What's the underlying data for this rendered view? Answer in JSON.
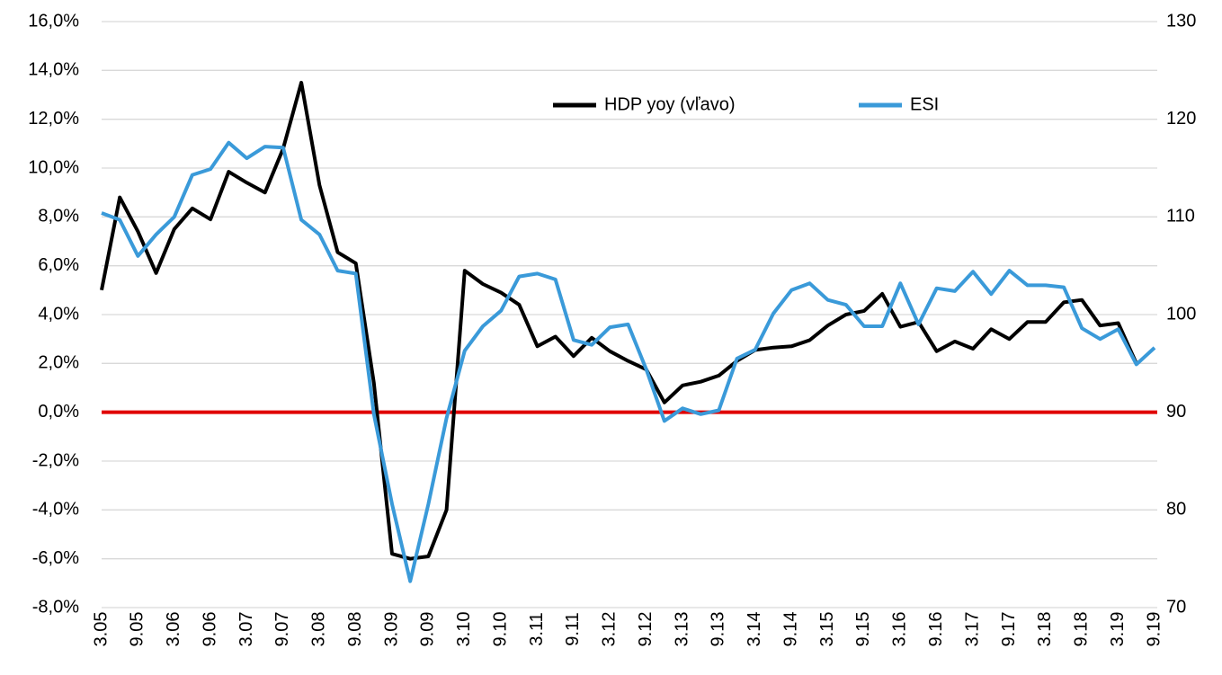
{
  "chart_data": {
    "type": "line",
    "categories": [
      "3.05",
      null,
      "9.05",
      null,
      "3.06",
      null,
      "9.06",
      null,
      "3.07",
      null,
      "9.07",
      null,
      "3.08",
      null,
      "9.08",
      null,
      "3.09",
      null,
      "9.09",
      null,
      "3.10",
      null,
      "9.10",
      null,
      "3.11",
      null,
      "9.11",
      null,
      "3.12",
      null,
      "9.12",
      null,
      "3.13",
      null,
      "9.13",
      null,
      "3.14",
      null,
      "9.14",
      null,
      "3.15",
      null,
      "9.15",
      null,
      "3.16",
      null,
      "9.16",
      null,
      "3.17",
      null,
      "9.17",
      null,
      "3.18",
      null,
      "9.18",
      null,
      "3.19",
      null,
      "9.19"
    ],
    "series": [
      {
        "name": "HDP yoy (vľavo)",
        "color": "#000000",
        "values": [
          5.0,
          8.8,
          7.4,
          5.7,
          7.5,
          8.35,
          7.9,
          9.85,
          9.4,
          9.0,
          10.8,
          13.5,
          9.3,
          6.55,
          6.1,
          1.2,
          -5.8,
          -6.0,
          -5.9,
          -4.0,
          5.8,
          5.25,
          4.9,
          4.4,
          2.7,
          3.1,
          2.3,
          3.05,
          2.5,
          2.1,
          1.75,
          0.4,
          1.1,
          1.25,
          1.5,
          2.1,
          2.55,
          2.65,
          2.7,
          2.95,
          3.55,
          4.0,
          4.15,
          4.85,
          3.5,
          3.7,
          2.5,
          2.9,
          2.6,
          3.4,
          3.0,
          3.7,
          3.7,
          4.5,
          4.6,
          3.55,
          3.65,
          2.0,
          null
        ]
      },
      {
        "name": "ESI",
        "color": "#3a9ad9",
        "axis": "y2",
        "values": [
          110.4,
          109.7,
          106.0,
          108.2,
          110.0,
          114.3,
          114.9,
          117.6,
          116.0,
          117.2,
          117.1,
          109.7,
          108.2,
          104.5,
          104.2,
          89.8,
          80.6,
          72.7,
          80.6,
          89.4,
          96.3,
          98.8,
          100.4,
          103.9,
          104.2,
          103.6,
          97.4,
          96.9,
          98.7,
          99.0,
          94.4,
          89.1,
          90.4,
          89.8,
          90.2,
          95.5,
          96.4,
          100.1,
          102.5,
          103.2,
          101.5,
          101.0,
          98.8,
          98.8,
          103.2,
          99.0,
          102.7,
          102.4,
          104.4,
          102.1,
          104.5,
          103.0,
          103.0,
          102.8,
          98.6,
          97.5,
          98.5,
          94.9,
          96.6
        ]
      }
    ],
    "ylim": [
      -8,
      16
    ],
    "yticks": [
      {
        "value": -8,
        "label": "-8,0%"
      },
      {
        "value": -6,
        "label": "-6,0%"
      },
      {
        "value": -4,
        "label": "-4,0%"
      },
      {
        "value": -2,
        "label": "-2,0%"
      },
      {
        "value": 0,
        "label": "0,0%"
      },
      {
        "value": 2,
        "label": "2,0%"
      },
      {
        "value": 4,
        "label": "4,0%"
      },
      {
        "value": 6,
        "label": "6,0%"
      },
      {
        "value": 8,
        "label": "8,0%"
      },
      {
        "value": 10,
        "label": "10,0%"
      },
      {
        "value": 12,
        "label": "12,0%"
      },
      {
        "value": 14,
        "label": "14,0%"
      },
      {
        "value": 16,
        "label": "16,0%"
      }
    ],
    "y2lim": [
      70,
      130
    ],
    "y2ticks": [
      70,
      80,
      90,
      100,
      110,
      120,
      130
    ],
    "grid": true,
    "zero_line_color": "#e00000",
    "legend": "upper center"
  }
}
